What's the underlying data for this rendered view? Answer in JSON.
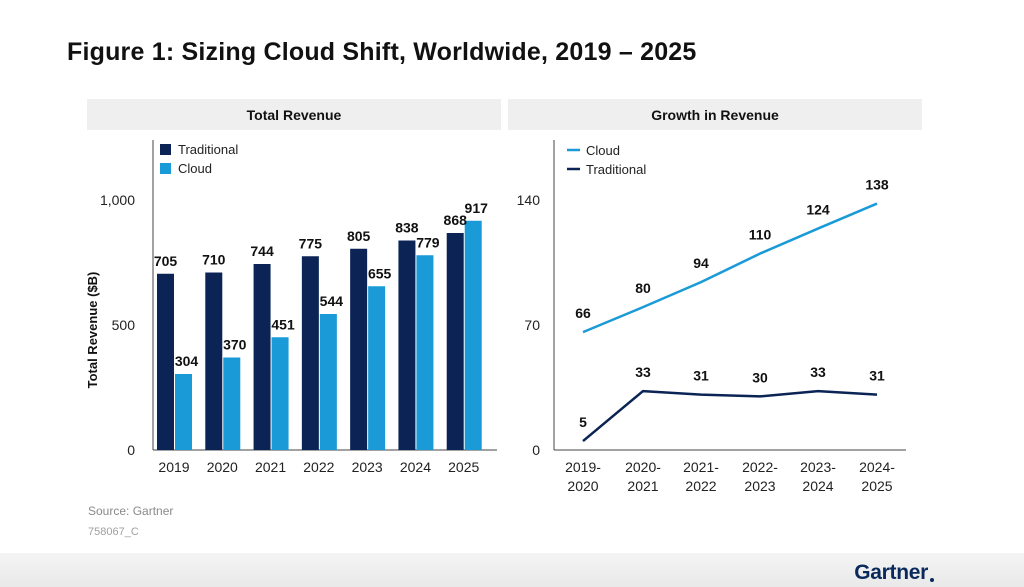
{
  "title": "Figure 1: Sizing Cloud Shift, Worldwide, 2019 – 2025",
  "source": "Source: Gartner",
  "figure_id": "758067_C",
  "brand": "Gartner",
  "colors": {
    "traditional": "#0b2455",
    "cloud": "#1a9ad6",
    "panel_header": "#efefef"
  },
  "chart_data": [
    {
      "type": "bar",
      "title": "Total Revenue",
      "ylabel": "Total Revenue ($B)",
      "xlabel": "",
      "ylim": [
        0,
        1000
      ],
      "yticks": [
        0,
        500,
        1000
      ],
      "ytick_labels": [
        "0",
        "500",
        "1,000"
      ],
      "legend": "top-left",
      "categories": [
        "2019",
        "2020",
        "2021",
        "2022",
        "2023",
        "2024",
        "2025"
      ],
      "series": [
        {
          "name": "Traditional",
          "values": [
            705,
            710,
            744,
            775,
            805,
            838,
            868
          ]
        },
        {
          "name": "Cloud",
          "values": [
            304,
            370,
            451,
            544,
            655,
            779,
            917
          ]
        }
      ]
    },
    {
      "type": "line",
      "title": "Growth in Revenue",
      "xlabel": "",
      "ylabel": "",
      "ylim": [
        0,
        140
      ],
      "yticks": [
        0,
        70,
        140
      ],
      "ytick_labels": [
        "0",
        "70",
        "140"
      ],
      "legend": "top-left",
      "categories": [
        [
          "2019-",
          "2020"
        ],
        [
          "2020-",
          "2021"
        ],
        [
          "2021-",
          "2022"
        ],
        [
          "2022-",
          "2023"
        ],
        [
          "2023-",
          "2024"
        ],
        [
          "2024-",
          "2025"
        ]
      ],
      "series": [
        {
          "name": "Cloud",
          "values": [
            66,
            80,
            94,
            110,
            124,
            138
          ]
        },
        {
          "name": "Traditional",
          "values": [
            5,
            33,
            31,
            30,
            33,
            31
          ]
        }
      ]
    }
  ]
}
